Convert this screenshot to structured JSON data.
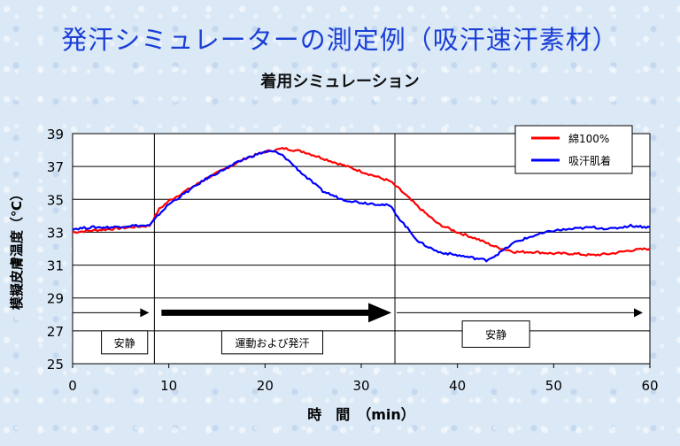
{
  "header": {
    "title": "発汗シミュレーターの測定例（吸汗速汗素材）"
  },
  "chart_data": {
    "type": "line",
    "title": "着用シミュレーション",
    "xlabel": "時　間　（min）",
    "ylabel": "模擬皮膚温度（℃）",
    "xlim": [
      0,
      60
    ],
    "ylim": [
      25,
      39
    ],
    "xticks": [
      0,
      10,
      20,
      30,
      40,
      50,
      60
    ],
    "yticks": [
      25,
      27,
      29,
      31,
      33,
      35,
      37,
      39
    ],
    "grid": {
      "horizontal": true,
      "vertical": false
    },
    "legend_position": "top-right",
    "series": [
      {
        "name": "綿100%",
        "color": "#ff0000",
        "x": [
          0,
          2,
          4,
          6,
          8,
          9,
          10,
          12,
          14,
          16,
          18,
          20,
          21,
          22,
          24,
          26,
          28,
          30,
          32,
          33,
          34,
          36,
          38,
          40,
          42,
          44,
          46,
          48,
          50,
          52,
          54,
          56,
          58,
          60
        ],
        "y": [
          33.0,
          33.1,
          33.2,
          33.3,
          33.4,
          34.4,
          34.9,
          35.6,
          36.3,
          36.9,
          37.5,
          37.9,
          38.0,
          38.1,
          37.9,
          37.5,
          37.1,
          36.7,
          36.3,
          36.1,
          35.6,
          34.5,
          33.5,
          33.0,
          32.6,
          32.1,
          31.8,
          31.8,
          31.7,
          31.7,
          31.6,
          31.7,
          31.9,
          32.0
        ]
      },
      {
        "name": "吸汗肌着",
        "color": "#0000ff",
        "x": [
          0,
          2,
          4,
          6,
          8,
          9,
          10,
          12,
          14,
          16,
          18,
          20,
          21,
          22,
          24,
          26,
          28,
          30,
          32,
          33,
          34,
          36,
          38,
          40,
          42,
          43,
          44,
          46,
          48,
          50,
          52,
          54,
          56,
          58,
          60
        ],
        "y": [
          33.2,
          33.3,
          33.3,
          33.4,
          33.4,
          34.1,
          34.7,
          35.5,
          36.3,
          36.9,
          37.5,
          37.9,
          37.9,
          37.6,
          36.5,
          35.5,
          35.0,
          34.8,
          34.7,
          34.6,
          33.8,
          32.4,
          31.8,
          31.6,
          31.4,
          31.3,
          31.6,
          32.4,
          32.8,
          33.1,
          33.2,
          33.3,
          33.2,
          33.4,
          33.3
        ]
      }
    ],
    "annotations": {
      "phase_lines_x": [
        8.5,
        33.5
      ],
      "arrow_y": 28.1,
      "phases": [
        {
          "label": "安静",
          "x_from": 0,
          "x_to": 8.5,
          "box_x": [
            3,
            7.8
          ],
          "box_y": [
            25.6,
            27.0
          ]
        },
        {
          "label": "運動および発汗",
          "x_from": 8.5,
          "x_to": 33.5,
          "box_x": [
            15.5,
            26
          ],
          "box_y": [
            25.6,
            27.0
          ]
        },
        {
          "label": "安静",
          "x_from": 33.5,
          "x_to": 60,
          "box_x": [
            40.5,
            47.5
          ],
          "box_y": [
            26.0,
            27.6
          ]
        }
      ]
    }
  }
}
